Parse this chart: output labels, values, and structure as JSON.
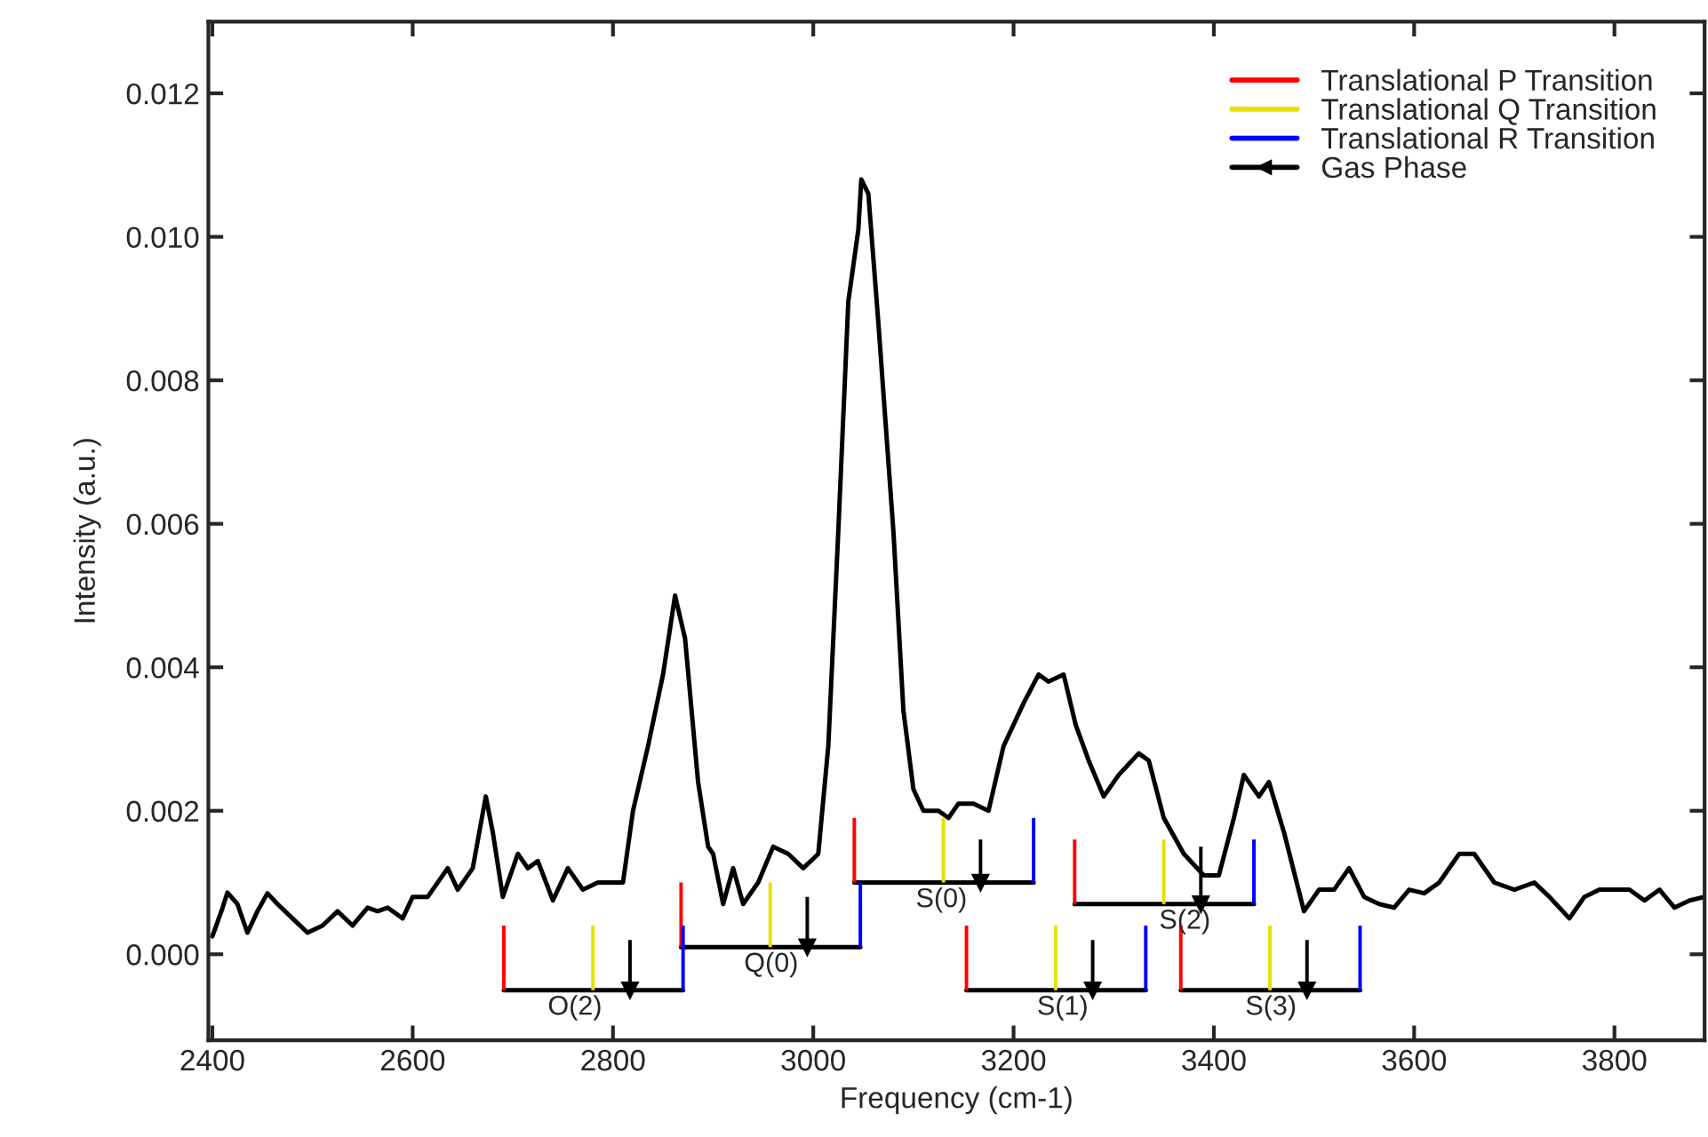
{
  "chart_data": {
    "type": "line",
    "xlabel": "Frequency (cm-1)",
    "ylabel": "Intensity (a.u.)",
    "xlim": [
      2396,
      3890
    ],
    "ylim": [
      -0.0012,
      0.013
    ],
    "xticks": [
      2400,
      2600,
      2800,
      3000,
      3200,
      3400,
      3600,
      3800
    ],
    "yticks": [
      {
        "value": 0,
        "label": "0.000"
      },
      {
        "value": 0.002,
        "label": "0.002"
      },
      {
        "value": 0.004,
        "label": "0.004"
      },
      {
        "value": 0.006,
        "label": "0.006"
      },
      {
        "value": 0.008,
        "label": "0.008"
      },
      {
        "value": 0.01,
        "label": "0.010"
      },
      {
        "value": 0.012,
        "label": "0.012"
      }
    ],
    "grid": false,
    "legend": "top right",
    "series": [
      {
        "color": "#000000",
        "x": [
          2400,
          2410,
          2415,
          2425,
          2435,
          2445,
          2455,
          2465,
          2480,
          2495,
          2510,
          2525,
          2540,
          2555,
          2565,
          2575,
          2590,
          2600,
          2615,
          2635,
          2645,
          2660,
          2673,
          2680,
          2690,
          2705,
          2715,
          2725,
          2740,
          2755,
          2770,
          2785,
          2800,
          2810,
          2820,
          2835,
          2850,
          2862,
          2872,
          2885,
          2895,
          2900,
          2910,
          2920,
          2930,
          2945,
          2960,
          2975,
          2990,
          3005,
          3015,
          3025,
          3035,
          3045,
          3048,
          3055,
          3065,
          3080,
          3090,
          3100,
          3110,
          3125,
          3135,
          3145,
          3160,
          3175,
          3190,
          3210,
          3225,
          3235,
          3250,
          3262,
          3275,
          3290,
          3305,
          3325,
          3335,
          3350,
          3370,
          3390,
          3405,
          3420,
          3430,
          3445,
          3455,
          3470,
          3490,
          3505,
          3520,
          3535,
          3550,
          3565,
          3580,
          3595,
          3610,
          3625,
          3645,
          3660,
          3680,
          3700,
          3720,
          3735,
          3755,
          3770,
          3785,
          3800,
          3815,
          3830,
          3845,
          3860,
          3875,
          3890
        ],
        "values": [
          0.00025,
          0.00064,
          0.00086,
          0.0007,
          0.0003,
          0.0006,
          0.00085,
          0.0007,
          0.0005,
          0.0003,
          0.0004,
          0.0006,
          0.0004,
          0.00065,
          0.0006,
          0.00065,
          0.0005,
          0.0008,
          0.0008,
          0.0012,
          0.0009,
          0.0012,
          0.0022,
          0.0017,
          0.0008,
          0.0014,
          0.0012,
          0.0013,
          0.00075,
          0.0012,
          0.0009,
          0.001,
          0.001,
          0.001,
          0.002,
          0.0029,
          0.0039,
          0.005,
          0.0044,
          0.0024,
          0.0015,
          0.0014,
          0.0007,
          0.0012,
          0.0007,
          0.001,
          0.0015,
          0.0014,
          0.0012,
          0.0014,
          0.0029,
          0.0059,
          0.0091,
          0.0101,
          0.0108,
          0.0106,
          0.0088,
          0.0059,
          0.0034,
          0.0023,
          0.002,
          0.002,
          0.0019,
          0.0021,
          0.0021,
          0.002,
          0.0029,
          0.0035,
          0.0039,
          0.0038,
          0.0039,
          0.0032,
          0.0027,
          0.0022,
          0.0025,
          0.0028,
          0.0027,
          0.0019,
          0.0014,
          0.0011,
          0.0011,
          0.0019,
          0.0025,
          0.0022,
          0.0024,
          0.0017,
          0.0006,
          0.0009,
          0.0009,
          0.0012,
          0.0008,
          0.0007,
          0.00065,
          0.0009,
          0.00085,
          0.001,
          0.0014,
          0.0014,
          0.001,
          0.0009,
          0.001,
          0.0008,
          0.0005,
          0.0008,
          0.0009,
          0.0009,
          0.0009,
          0.00075,
          0.0009,
          0.00065,
          0.00075,
          0.0008
        ]
      },
      {
        "type": "line",
        "color": "#000000",
        "x": [
          2691,
          2870,
          null,
          2868,
          3047,
          null,
          3041,
          3220,
          null,
          3153,
          3332,
          null,
          3261,
          3440,
          null,
          3367,
          3546
        ],
        "values": [
          -0.0005,
          -0.0005,
          null,
          0.0001,
          0.0001,
          null,
          0.001,
          0.001,
          null,
          -0.0005,
          -0.0005,
          null,
          0.0007,
          0.0007,
          null,
          -0.0005,
          -0.0005
        ]
      },
      {
        "type": "bar",
        "name": "Translational P Transition",
        "color": "#ff0000",
        "x": [
          2691,
          2868,
          3041,
          3153,
          3261,
          3367
        ],
        "base": [
          -0.0005,
          0.0001,
          0.001,
          -0.0005,
          0.0007,
          -0.0005
        ],
        "values": [
          0.0009,
          0.0009,
          0.0009,
          0.0009,
          0.0009,
          0.0009
        ]
      },
      {
        "type": "bar",
        "name": "Translational Q Transition",
        "color": "#e8e000",
        "x": [
          2780,
          2957,
          3130,
          3242,
          3350,
          3456
        ],
        "base": [
          -0.0005,
          0.0001,
          0.001,
          -0.0005,
          0.0007,
          -0.0005
        ],
        "values": [
          0.0009,
          0.0009,
          0.0009,
          0.0009,
          0.0009,
          0.0009
        ]
      },
      {
        "type": "bar",
        "name": "Translational R Transition",
        "color": "#0000ff",
        "x": [
          2870,
          3047,
          3220,
          3332,
          3440,
          3546
        ],
        "base": [
          -0.0005,
          0.0001,
          0.001,
          -0.0005,
          0.0007,
          -0.0005
        ],
        "values": [
          0.0009,
          0.0009,
          0.0009,
          0.0009,
          0.0009,
          0.0009
        ]
      },
      {
        "type": "bar",
        "name": "Gas Phase",
        "color": "#000000",
        "marker": "triangle",
        "x": [
          2817,
          2994,
          3167,
          3279,
          3387,
          3493
        ],
        "base": [
          -0.0005,
          0.0001,
          0.001,
          -0.0005,
          0.0007,
          -0.0005
        ],
        "values": [
          0.0007,
          0.0007,
          0.0006,
          0.0007,
          0.0008,
          0.0007
        ]
      }
    ],
    "annotations": [
      {
        "text": "O(2)",
        "x": 2762,
        "y": -0.0005
      },
      {
        "text": "Q(0)",
        "x": 2958,
        "y": 0.0001
      },
      {
        "text": "S(0)",
        "x": 3128,
        "y": 0.001
      },
      {
        "text": "S(1)",
        "x": 3249,
        "y": -0.0005
      },
      {
        "text": "S(2)",
        "x": 3371,
        "y": 0.0007
      },
      {
        "text": "S(3)",
        "x": 3457,
        "y": -0.0005
      }
    ]
  }
}
